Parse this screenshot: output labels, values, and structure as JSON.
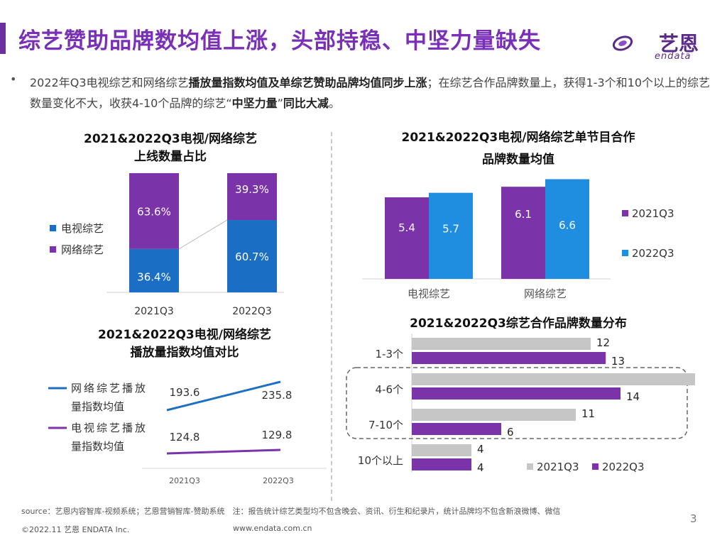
{
  "header": {
    "title": "综艺赞助品牌数均值上涨，头部持稳、中坚力量缺失",
    "logo_text": "艺恩",
    "logo_sub": "endata"
  },
  "summary": {
    "bullet": "•",
    "p1": "2022年Q3电视综艺和网络综艺",
    "p1_bold": "播放量指数均值及单综艺赞助品牌均值同步上涨",
    "p2": "；在综艺合作品牌数量上，获得1-3个和10个以上的综艺数量变化不大，收获4-10个品牌的综艺“",
    "p2_bold": "中坚力量",
    "p3": "”",
    "p3_bold": "同比大减",
    "p4": "。"
  },
  "chart_data": [
    {
      "id": "share",
      "type": "bar",
      "stacked": true,
      "title_line1": "2021&2022Q3电视/网络综艺",
      "title_line2": "上线数量占比",
      "categories": [
        "2021Q3",
        "2022Q3"
      ],
      "series": [
        {
          "name": "电视综艺",
          "values": [
            36.4,
            60.7
          ],
          "labels": [
            "36.4%",
            "60.7%"
          ],
          "color": "#1a6fc4"
        },
        {
          "name": "网络综艺",
          "values": [
            63.6,
            39.3
          ],
          "labels": [
            "63.6%",
            "39.3%"
          ],
          "color": "#7a33a8"
        }
      ],
      "ylim": [
        0,
        100
      ]
    },
    {
      "id": "brands_avg",
      "type": "bar",
      "title_line1": "2021&2022Q3电视/网络综艺单节目合作",
      "title_line2": "品牌数量均值",
      "categories": [
        "电视综艺",
        "网络综艺"
      ],
      "series": [
        {
          "name": "2021Q3",
          "values": [
            5.4,
            6.1
          ],
          "labels": [
            "5.4",
            "6.1"
          ],
          "color": "#7a33a8"
        },
        {
          "name": "2022Q3",
          "values": [
            5.7,
            6.6
          ],
          "labels": [
            "5.7",
            "6.6"
          ],
          "color": "#1f8ee0"
        }
      ],
      "ylim": [
        0,
        7
      ]
    },
    {
      "id": "play_index",
      "type": "line",
      "title_line1": "2021&2022Q3电视/网络综艺",
      "title_line2": "播放量指数均值对比",
      "categories": [
        "2021Q3",
        "2022Q3"
      ],
      "series": [
        {
          "name": "电视综艺播放量指数均值",
          "name_line1": "电视综艺播放",
          "name_line2": "量指数均值",
          "values": [
            124.8,
            129.8
          ],
          "labels": [
            "124.8",
            "129.8"
          ],
          "color": "#7a33a8"
        },
        {
          "name": "网络综艺播放量指数均值",
          "name_line1": "网络综艺播放",
          "name_line2": "量指数均值",
          "values": [
            193.6,
            235.8
          ],
          "labels": [
            "193.6",
            "235.8"
          ],
          "color": "#1a6fc4"
        }
      ],
      "ylim": [
        0,
        260
      ]
    },
    {
      "id": "distribution",
      "type": "bar",
      "orientation": "horizontal",
      "title": "2021&2022Q3综艺合作品牌数量分布",
      "categories": [
        "1-3个",
        "4-6个",
        "7-10个",
        "10个以上"
      ],
      "series": [
        {
          "name": "2021Q3",
          "values": [
            12,
            19,
            11,
            4
          ],
          "labels": [
            "12",
            "19",
            "11",
            "4"
          ],
          "color": "#c6c6c6"
        },
        {
          "name": "2022Q3",
          "values": [
            13,
            14,
            6,
            4
          ],
          "labels": [
            "13",
            "14",
            "6",
            "4"
          ],
          "color": "#7a33a8"
        }
      ],
      "xlim": [
        0,
        20
      ],
      "highlight": [
        "4-6个",
        "7-10个"
      ]
    }
  ],
  "footer": {
    "source": "source：艺恩内容智库-视频系统；艺恩营销智库-赞助系统　注：报告统计综艺类型均不包含晚会、资讯、衍生和纪录片，统计品牌均不包含新浪微博、微信",
    "copyright": "©2022.11 艺恩 ENDATA Inc.",
    "url": "www.endata.com.cn",
    "page": "3"
  }
}
